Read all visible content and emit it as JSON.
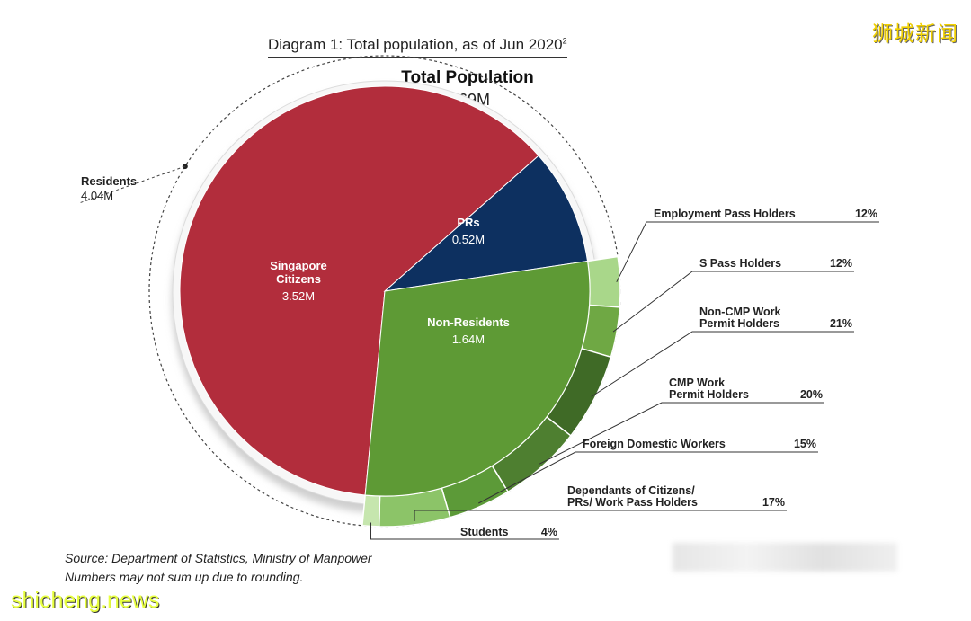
{
  "page": {
    "diagram_title": "Diagram 1: Total population, as of Jun 2020",
    "diagram_title_sup": "2",
    "source_line": "Source: Department of Statistics, Ministry of Manpower",
    "note_line": "Numbers may not sum up due to rounding.",
    "watermark_top": "狮城新闻",
    "watermark_bottom": "shicheng.news"
  },
  "chart_data": {
    "type": "pie",
    "title": "Total Population",
    "total": {
      "label": "Total Population",
      "value": "5.69M"
    },
    "residents": {
      "label": "Residents",
      "value": "4.04M"
    },
    "slices": [
      {
        "name_lines": [
          "Singapore",
          "Citizens"
        ],
        "value_label": "3.52M",
        "value": 3.52,
        "color": "#b22d3c"
      },
      {
        "name_lines": [
          "PRs"
        ],
        "value_label": "0.52M",
        "value": 0.52,
        "color": "#0d3060"
      },
      {
        "name_lines": [
          "Non-Residents"
        ],
        "value_label": "1.64M",
        "value": 1.64,
        "color": "#5e9a35"
      }
    ],
    "non_resident_breakdown": [
      {
        "label_lines": [
          "Employment Pass Holders"
        ],
        "percent": 12,
        "percent_label": "12%",
        "color": "#a9d78a"
      },
      {
        "label_lines": [
          "S Pass Holders"
        ],
        "percent": 12,
        "percent_label": "12%",
        "color": "#6fa844"
      },
      {
        "label_lines": [
          "Non-CMP Work",
          "Permit Holders"
        ],
        "percent": 21,
        "percent_label": "21%",
        "color": "#3f6a26"
      },
      {
        "label_lines": [
          "CMP Work",
          "Permit Holders"
        ],
        "percent": 20,
        "percent_label": "20%",
        "color": "#4e7f30"
      },
      {
        "label_lines": [
          "Foreign Domestic Workers"
        ],
        "percent": 15,
        "percent_label": "15%",
        "color": "#5c9a38"
      },
      {
        "label_lines": [
          "Dependants of Citizens/",
          "PRs/ Work Pass Holders"
        ],
        "percent": 17,
        "percent_label": "17%",
        "color": "#8cc468"
      },
      {
        "label_lines": [
          "Students"
        ],
        "percent": 4,
        "percent_label": "4%",
        "color": "#c6e6ae"
      }
    ]
  }
}
